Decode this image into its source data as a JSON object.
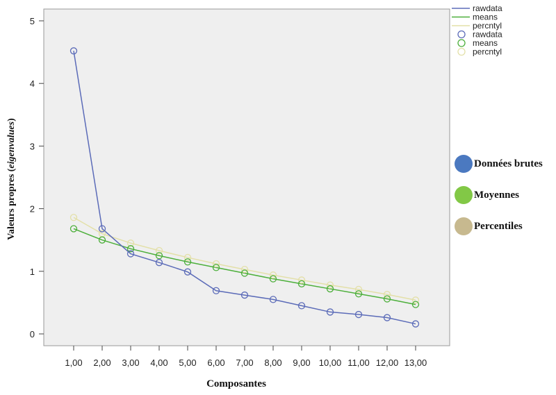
{
  "chart_data": {
    "type": "line",
    "x": [
      "1,00",
      "2,00",
      "3,00",
      "4,00",
      "5,00",
      "6,00",
      "7,00",
      "8,00",
      "9,00",
      "10,00",
      "11,00",
      "12,00",
      "13,00"
    ],
    "xlabel": "Composantes",
    "ylabel_main": "Valeurs propres (",
    "ylabel_italic": "eigenvalues",
    "ylabel_end": ")",
    "ylim": [
      0,
      5.25
    ],
    "yticks": [
      0,
      1,
      2,
      3,
      4,
      5
    ],
    "grid": false,
    "legend_position": "top-right",
    "series": [
      {
        "name": "rawdata",
        "color": "#5b6bb8",
        "values": [
          4.52,
          1.68,
          1.28,
          1.14,
          0.99,
          0.69,
          0.62,
          0.55,
          0.45,
          0.35,
          0.31,
          0.26,
          0.16
        ]
      },
      {
        "name": "means",
        "color": "#4caf3a",
        "values": [
          1.68,
          1.5,
          1.36,
          1.25,
          1.15,
          1.06,
          0.97,
          0.88,
          0.8,
          0.72,
          0.64,
          0.56,
          0.47
        ]
      },
      {
        "name": "percntyl",
        "color": "#e3e0a8",
        "values": [
          1.86,
          1.6,
          1.45,
          1.33,
          1.22,
          1.12,
          1.03,
          0.94,
          0.86,
          0.78,
          0.71,
          0.63,
          0.54
        ]
      }
    ],
    "legend_entries": [
      "rawdata",
      "means",
      "percntyl",
      "rawdata",
      "means",
      "percntyl"
    ]
  },
  "annotation_legend": [
    {
      "label": "Données brutes",
      "color": "#4b79c0"
    },
    {
      "label": "Moyennes",
      "color": "#82c846"
    },
    {
      "label": "Percentiles",
      "color": "#c7b98f"
    }
  ]
}
